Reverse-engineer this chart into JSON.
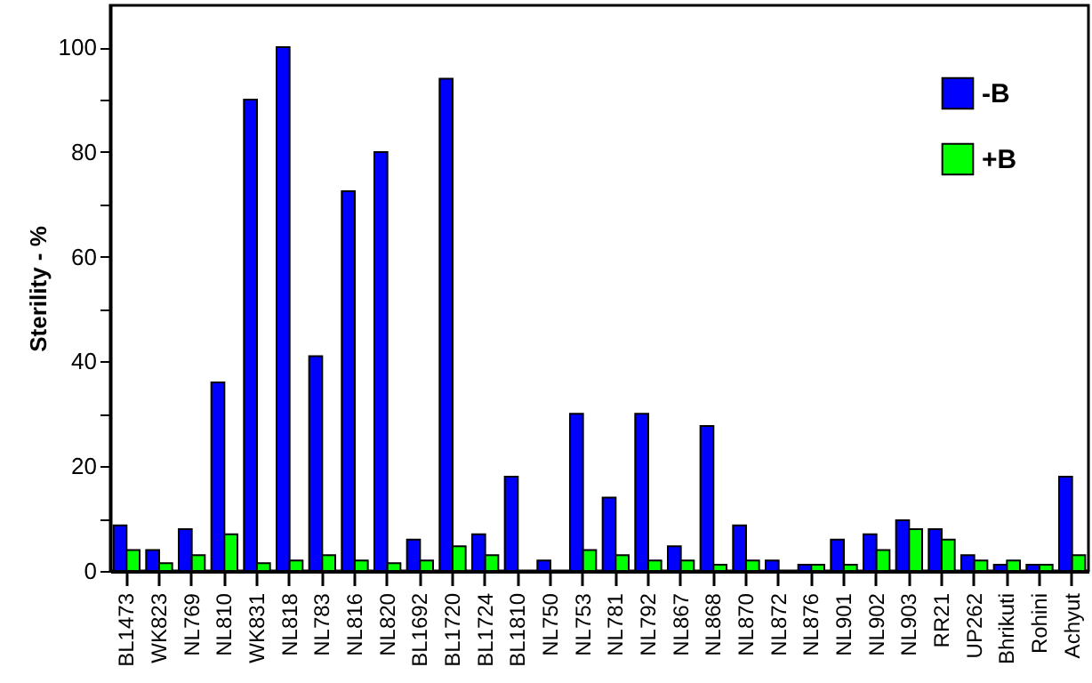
{
  "chart_data": {
    "type": "bar",
    "ylabel": "Sterility - %",
    "categories": [
      "BL1473",
      "WK823",
      "NL769",
      "NL810",
      "WK831",
      "NL818",
      "NL783",
      "NL816",
      "NL820",
      "BL1692",
      "BL1720",
      "BL1724",
      "BL1810",
      "NL750",
      "NL753",
      "NL781",
      "NL792",
      "NL867",
      "NL868",
      "NL870",
      "NL872",
      "NL876",
      "NL901",
      "NL902",
      "NL903",
      "RR21",
      "UP262",
      "Bhrikuti",
      "Rohini",
      "Achyut"
    ],
    "series": [
      {
        "name": "-B",
        "color": "#0000ff",
        "values": [
          8.7,
          4,
          8,
          36,
          90,
          100,
          41,
          72.5,
          80,
          6,
          94,
          7,
          18,
          2,
          30,
          14,
          30,
          4.7,
          27.7,
          8.7,
          2,
          1.2,
          6,
          7,
          9.7,
          8,
          3,
          1.2,
          1.2,
          18
        ]
      },
      {
        "name": "+B",
        "color": "#00ff00",
        "values": [
          4,
          1.5,
          3,
          7,
          1.5,
          2,
          3,
          2,
          1.5,
          2,
          4.7,
          3,
          0,
          0,
          4,
          3,
          2,
          2,
          1.2,
          2,
          0,
          1.2,
          1.2,
          4,
          8,
          6,
          2,
          2,
          1.2,
          3
        ]
      }
    ],
    "ylim": [
      0,
      108
    ],
    "yticks": [
      0,
      {
        "value": 10,
        "label": null
      },
      20,
      {
        "value": 30,
        "label": null
      },
      40,
      {
        "value": 50,
        "label": null
      },
      60,
      {
        "value": 70,
        "label": null
      },
      80,
      {
        "value": 90,
        "label": null
      },
      100
    ],
    "grid": false,
    "legend": "top right"
  }
}
